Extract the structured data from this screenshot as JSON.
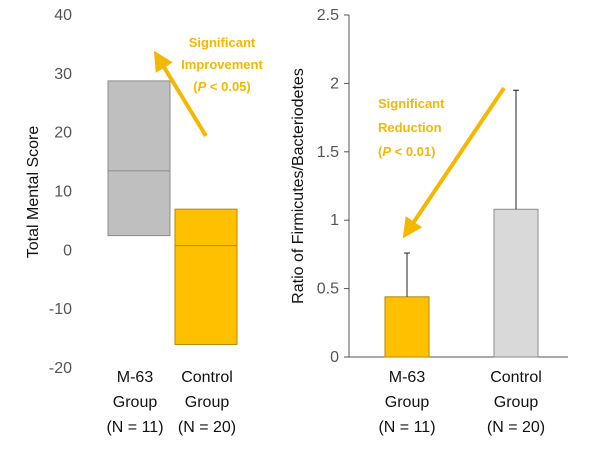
{
  "colors": {
    "m63": "#FFC000",
    "m63_edge": "#B8860B",
    "control": "#BFBFBF",
    "control_light": "#D9D9D9",
    "edge": "#8C8C8C",
    "annotation": "#F5B800",
    "axis": "#555555"
  },
  "chart_data": [
    {
      "type": "box",
      "ylabel": "Total Mental Score",
      "ylim": [
        -20,
        40
      ],
      "yticks": [
        "40",
        "30",
        "20",
        "10",
        "0",
        "-10",
        "-20"
      ],
      "ytick_values": [
        40,
        30,
        20,
        10,
        0,
        -10,
        -20
      ],
      "categories": [
        {
          "line1": "M-63",
          "line2": "Group",
          "line3": "(N = 11)"
        },
        {
          "line1": "Control",
          "line2": "Group",
          "line3": "(N = 20)"
        }
      ],
      "boxes": [
        {
          "low": 2.5,
          "median": 13.5,
          "high": 28.8,
          "color": "#BFBFBF"
        },
        {
          "low": -16,
          "median": 0.8,
          "high": 7,
          "color": "#FFC000"
        }
      ],
      "annotation": {
        "line1": "Significant",
        "line2": "Improvement",
        "p_open": "(",
        "p_sym": "P",
        "p_rest": " < 0.05)"
      }
    },
    {
      "type": "bar",
      "ylabel": "Ratio of Firmicutes/Bacteriodetes",
      "ylim": [
        0,
        2.5
      ],
      "yticks": [
        "2.5",
        "2",
        "1.5",
        "1",
        "0.5",
        "0"
      ],
      "ytick_values": [
        2.5,
        2,
        1.5,
        1,
        0.5,
        0
      ],
      "categories": [
        {
          "line1": "M-63",
          "line2": "Group",
          "line3": "(N = 11)"
        },
        {
          "line1": "Control",
          "line2": "Group",
          "line3": "(N = 20)"
        }
      ],
      "values": [
        0.44,
        1.08
      ],
      "errors": [
        0.32,
        0.87
      ],
      "bar_colors": [
        "#FFC000",
        "#D9D9D9"
      ],
      "annotation": {
        "line1": "Significant",
        "line2": "Reduction",
        "p_open": "(",
        "p_sym": "P",
        "p_rest": " < 0.01)"
      }
    }
  ]
}
